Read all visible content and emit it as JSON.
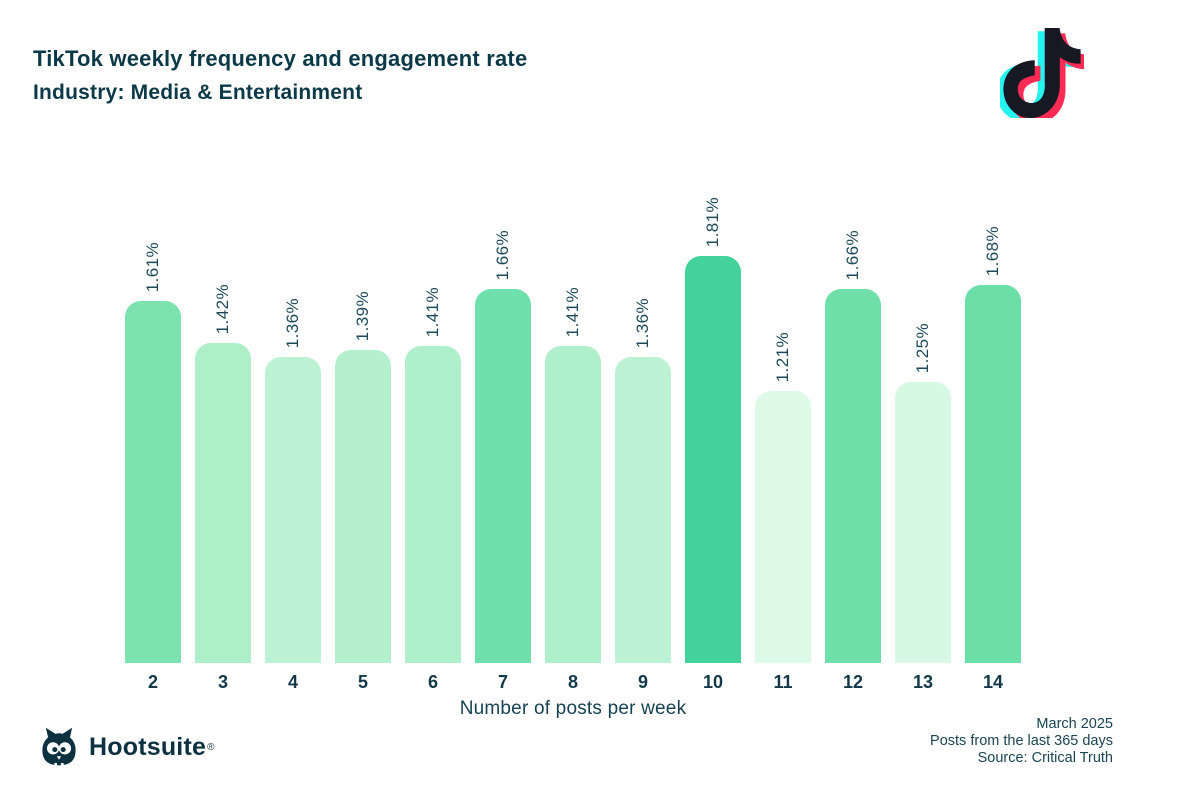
{
  "header": {
    "title": "TikTok weekly frequency and engagement rate",
    "subtitle": "Industry: Media & Entertainment"
  },
  "icons": {
    "tiktok_logo": "tiktok-note-icon",
    "hootsuite_owl": "owl-icon"
  },
  "colors": {
    "text_dark_teal": "#0b3948",
    "label_teal": "#1d4a5a",
    "hootsuite_navy": "#0d3140",
    "tiktok_cyan": "#25f4ee",
    "tiktok_red": "#fe2c55",
    "tiktok_black": "#161823",
    "background": "#ffffff"
  },
  "chart_data": {
    "type": "bar",
    "title": "TikTok weekly frequency and engagement rate",
    "subtitle": "Industry: Media & Entertainment",
    "xlabel": "Number of posts per week",
    "ylabel": "",
    "grid": false,
    "legend": false,
    "ylim": [
      0,
      2
    ],
    "categories": [
      "2",
      "3",
      "4",
      "5",
      "6",
      "7",
      "8",
      "9",
      "10",
      "11",
      "12",
      "13",
      "14"
    ],
    "values": [
      1.61,
      1.42,
      1.36,
      1.39,
      1.41,
      1.66,
      1.41,
      1.36,
      1.81,
      1.21,
      1.66,
      1.25,
      1.68
    ],
    "labels": [
      "1.61%",
      "1.42%",
      "1.36%",
      "1.39%",
      "1.41%",
      "1.66%",
      "1.41%",
      "1.36%",
      "1.81%",
      "1.21%",
      "1.66%",
      "1.25%",
      "1.68%"
    ],
    "bar_colors": [
      "#7ce3b0",
      "#aeeec9",
      "#bdf2d4",
      "#b5f0ce",
      "#b0efcb",
      "#6fe0ab",
      "#b0efcb",
      "#bdf2d4",
      "#43d29a",
      "#dcfae6",
      "#70e0ab",
      "#d7f8e2",
      "#6cdfa9"
    ]
  },
  "footer": {
    "brand": "Hootsuite",
    "registered": "®",
    "date": "March 2025",
    "range": "Posts from the last 365 days",
    "source": "Source: Critical Truth"
  }
}
